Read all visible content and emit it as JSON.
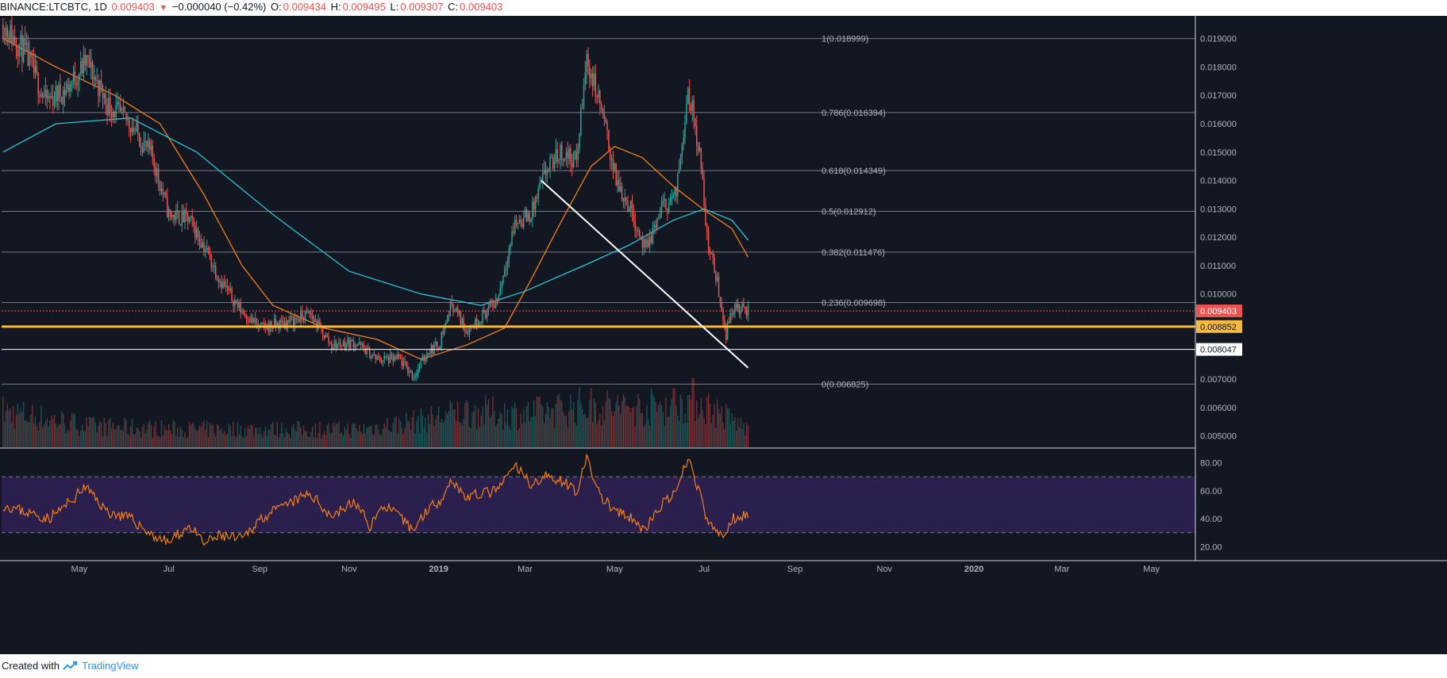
{
  "header": {
    "symbol": "BINANCE:LTCBTC, 1D",
    "price": "0.009403",
    "change_arrow": "▼",
    "change": "−0.000040 (−0.42%)",
    "o_label": "O:",
    "o_value": "0.009434",
    "h_label": "H:",
    "h_value": "0.009495",
    "l_label": "L:",
    "l_value": "0.009307",
    "c_label": "C:",
    "c_value": "0.009403"
  },
  "footer": {
    "created_with": "Created with",
    "brand": "TradingView",
    "logo_icon": "tradingview-logo-icon"
  },
  "colors": {
    "background": "#131722",
    "up": "#26a69a",
    "down": "#ef5350",
    "ma50": "#f57f17",
    "ma200": "#26c6da",
    "fib_line": "#d1d4dc",
    "support": "#f5b942",
    "rsi_line": "#f57f17",
    "rsi_band": "#2a1f4d",
    "axis_text": "#b2b5be"
  },
  "chart_data": [
    {
      "type": "candlestick",
      "title": "BINANCE:LTCBTC, 1D",
      "ylim": [
        0.0046,
        0.0198
      ],
      "x_range": [
        "2018-03-09",
        "2020-05-31"
      ],
      "y_ticks": [
        "0.019000",
        "0.018000",
        "0.017000",
        "0.016000",
        "0.015000",
        "0.014000",
        "0.013000",
        "0.012000",
        "0.011000",
        "0.010000",
        "0.007000",
        "0.006000",
        "0.005000"
      ],
      "x_ticks": [
        {
          "label": "May",
          "date": "2018-05-01"
        },
        {
          "label": "Jul",
          "date": "2018-07-01"
        },
        {
          "label": "Sep",
          "date": "2018-09-01"
        },
        {
          "label": "Nov",
          "date": "2018-11-01"
        },
        {
          "label": "2019",
          "date": "2019-01-01"
        },
        {
          "label": "Mar",
          "date": "2019-03-01"
        },
        {
          "label": "May",
          "date": "2019-05-01"
        },
        {
          "label": "Jul",
          "date": "2019-07-01"
        },
        {
          "label": "Sep",
          "date": "2019-09-01"
        },
        {
          "label": "Nov",
          "date": "2019-11-01"
        },
        {
          "label": "2020",
          "date": "2020-01-01"
        },
        {
          "label": "Mar",
          "date": "2020-03-01"
        },
        {
          "label": "May",
          "date": "2020-05-01"
        }
      ],
      "price_path": [
        [
          "2018-03-10",
          0.0195
        ],
        [
          "2018-03-25",
          0.0185
        ],
        [
          "2018-04-08",
          0.0168
        ],
        [
          "2018-04-22",
          0.0172
        ],
        [
          "2018-05-06",
          0.0182
        ],
        [
          "2018-05-20",
          0.0167
        ],
        [
          "2018-06-05",
          0.016
        ],
        [
          "2018-06-20",
          0.0148
        ],
        [
          "2018-07-01",
          0.0128
        ],
        [
          "2018-07-15",
          0.0126
        ],
        [
          "2018-07-25",
          0.0117
        ],
        [
          "2018-08-05",
          0.0105
        ],
        [
          "2018-08-18",
          0.0095
        ],
        [
          "2018-09-01",
          0.0088
        ],
        [
          "2018-09-20",
          0.009
        ],
        [
          "2018-10-05",
          0.0093
        ],
        [
          "2018-10-20",
          0.0082
        ],
        [
          "2018-11-05",
          0.0083
        ],
        [
          "2018-11-20",
          0.0077
        ],
        [
          "2018-12-05",
          0.0077
        ],
        [
          "2018-12-15",
          0.0071
        ],
        [
          "2018-12-25",
          0.008
        ],
        [
          "2019-01-01",
          0.0082
        ],
        [
          "2019-01-10",
          0.0097
        ],
        [
          "2019-01-20",
          0.0087
        ],
        [
          "2019-01-30",
          0.0092
        ],
        [
          "2019-02-10",
          0.0098
        ],
        [
          "2019-02-22",
          0.0125
        ],
        [
          "2019-03-05",
          0.0128
        ],
        [
          "2019-03-15",
          0.0143
        ],
        [
          "2019-03-25",
          0.015
        ],
        [
          "2019-04-05",
          0.0147
        ],
        [
          "2019-04-12",
          0.0183
        ],
        [
          "2019-04-22",
          0.0165
        ],
        [
          "2019-05-02",
          0.014
        ],
        [
          "2019-05-12",
          0.013
        ],
        [
          "2019-05-22",
          0.0115
        ],
        [
          "2019-06-02",
          0.013
        ],
        [
          "2019-06-12",
          0.0135
        ],
        [
          "2019-06-20",
          0.0173
        ],
        [
          "2019-06-28",
          0.015
        ],
        [
          "2019-07-03",
          0.012
        ],
        [
          "2019-07-10",
          0.0104
        ],
        [
          "2019-07-16",
          0.0086
        ],
        [
          "2019-07-20",
          0.0095
        ],
        [
          "2019-07-31",
          0.009403
        ]
      ],
      "volume_path": [
        [
          "2018-03-10",
          0.6
        ],
        [
          "2018-05-10",
          0.35
        ],
        [
          "2018-07-10",
          0.3
        ],
        [
          "2018-09-10",
          0.3
        ],
        [
          "2018-11-10",
          0.3
        ],
        [
          "2018-12-20",
          0.45
        ],
        [
          "2019-01-20",
          0.6
        ],
        [
          "2019-03-01",
          0.55
        ],
        [
          "2019-04-10",
          0.7
        ],
        [
          "2019-05-20",
          0.65
        ],
        [
          "2019-06-25",
          0.8
        ],
        [
          "2019-07-31",
          0.3
        ]
      ],
      "moving_averages": [
        {
          "color_key": "ma50",
          "path": [
            [
              "2018-03-10",
              0.019
            ],
            [
              "2018-04-15",
              0.018
            ],
            [
              "2018-05-25",
              0.017
            ],
            [
              "2018-06-25",
              0.016
            ],
            [
              "2018-07-25",
              0.0135
            ],
            [
              "2018-08-20",
              0.011
            ],
            [
              "2018-09-10",
              0.0096
            ],
            [
              "2018-10-15",
              0.0088
            ],
            [
              "2018-11-20",
              0.0084
            ],
            [
              "2018-12-20",
              0.0077
            ],
            [
              "2019-01-20",
              0.0082
            ],
            [
              "2019-02-15",
              0.0088
            ],
            [
              "2019-03-05",
              0.0105
            ],
            [
              "2019-03-25",
              0.0125
            ],
            [
              "2019-04-15",
              0.0145
            ],
            [
              "2019-05-01",
              0.0152
            ],
            [
              "2019-05-20",
              0.0148
            ],
            [
              "2019-06-10",
              0.0138
            ],
            [
              "2019-06-30",
              0.013
            ],
            [
              "2019-07-20",
              0.0123
            ],
            [
              "2019-07-31",
              0.0113
            ]
          ]
        },
        {
          "color_key": "ma200",
          "path": [
            [
              "2018-03-10",
              0.015
            ],
            [
              "2018-04-15",
              0.016
            ],
            [
              "2018-06-05",
              0.0162
            ],
            [
              "2018-07-20",
              0.015
            ],
            [
              "2018-09-10",
              0.0128
            ],
            [
              "2018-11-01",
              0.0108
            ],
            [
              "2018-12-20",
              0.01
            ],
            [
              "2019-01-30",
              0.0096
            ],
            [
              "2019-03-01",
              0.0101
            ],
            [
              "2019-04-10",
              0.011
            ],
            [
              "2019-05-10",
              0.0117
            ],
            [
              "2019-06-10",
              0.0126
            ],
            [
              "2019-07-01",
              0.013
            ],
            [
              "2019-07-20",
              0.0126
            ],
            [
              "2019-07-31",
              0.0119
            ]
          ]
        }
      ],
      "fibonacci": [
        {
          "label": "1(0.018999)",
          "value": 0.018999
        },
        {
          "label": "0.786(0.016394)",
          "value": 0.016394
        },
        {
          "label": "0.618(0.014349)",
          "value": 0.014349
        },
        {
          "label": "0.5(0.012912)",
          "value": 0.012912
        },
        {
          "label": "0.382(0.011476)",
          "value": 0.011476
        },
        {
          "label": "0.236(0.009698)",
          "value": 0.009698
        },
        {
          "label": "0(0.006825)",
          "value": 0.006825
        }
      ],
      "levels": [
        {
          "label": "0.009403",
          "value": 0.009403,
          "kind": "last-price"
        },
        {
          "label": "0.008852",
          "value": 0.008852,
          "kind": "support"
        },
        {
          "label": "0.008047",
          "value": 0.008047,
          "kind": "support-2"
        }
      ],
      "trendline": {
        "from": [
          "2019-03-12",
          0.014
        ],
        "to": [
          "2019-07-31",
          0.0074
        ]
      }
    },
    {
      "type": "line",
      "indicator": "RSI",
      "ylim": [
        10,
        90
      ],
      "y_ticks": [
        "80.00",
        "60.00",
        "40.00",
        "20.00"
      ],
      "band": [
        30,
        70
      ],
      "rsi_path": [
        [
          "2018-03-10",
          50
        ],
        [
          "2018-03-25",
          45
        ],
        [
          "2018-04-10",
          40
        ],
        [
          "2018-04-25",
          52
        ],
        [
          "2018-05-05",
          63
        ],
        [
          "2018-05-20",
          45
        ],
        [
          "2018-06-05",
          40
        ],
        [
          "2018-06-20",
          28
        ],
        [
          "2018-07-01",
          23
        ],
        [
          "2018-07-15",
          35
        ],
        [
          "2018-07-25",
          22
        ],
        [
          "2018-08-05",
          28
        ],
        [
          "2018-08-20",
          25
        ],
        [
          "2018-09-01",
          40
        ],
        [
          "2018-09-20",
          50
        ],
        [
          "2018-10-05",
          58
        ],
        [
          "2018-10-20",
          42
        ],
        [
          "2018-11-05",
          52
        ],
        [
          "2018-11-15",
          35
        ],
        [
          "2018-11-25",
          50
        ],
        [
          "2018-12-15",
          32
        ],
        [
          "2018-12-25",
          48
        ],
        [
          "2019-01-01",
          52
        ],
        [
          "2019-01-10",
          68
        ],
        [
          "2019-01-20",
          55
        ],
        [
          "2019-01-30",
          58
        ],
        [
          "2019-02-10",
          60
        ],
        [
          "2019-02-22",
          78
        ],
        [
          "2019-03-05",
          65
        ],
        [
          "2019-03-15",
          70
        ],
        [
          "2019-03-25",
          68
        ],
        [
          "2019-04-05",
          60
        ],
        [
          "2019-04-12",
          82
        ],
        [
          "2019-04-22",
          55
        ],
        [
          "2019-05-02",
          45
        ],
        [
          "2019-05-12",
          40
        ],
        [
          "2019-05-22",
          32
        ],
        [
          "2019-06-02",
          50
        ],
        [
          "2019-06-12",
          58
        ],
        [
          "2019-06-20",
          84
        ],
        [
          "2019-06-28",
          58
        ],
        [
          "2019-07-03",
          38
        ],
        [
          "2019-07-10",
          30
        ],
        [
          "2019-07-16",
          28
        ],
        [
          "2019-07-20",
          40
        ],
        [
          "2019-07-31",
          44
        ]
      ]
    }
  ]
}
